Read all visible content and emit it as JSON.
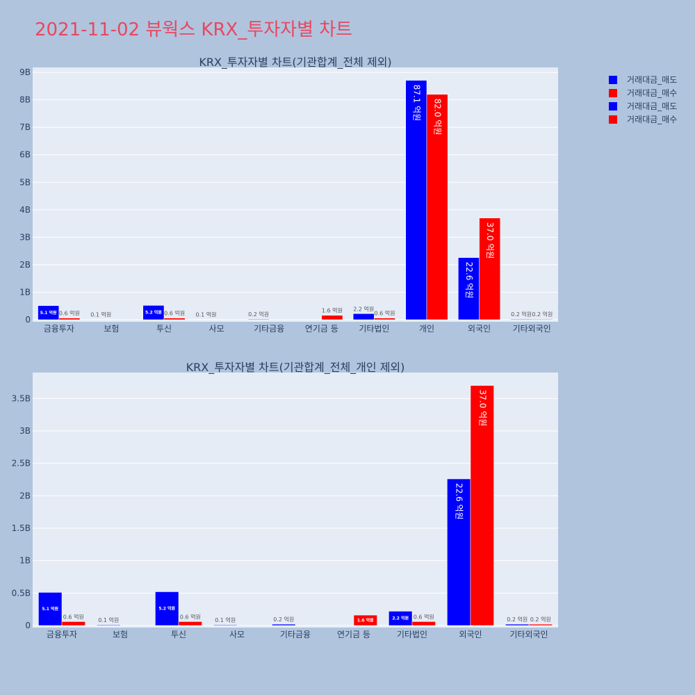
{
  "page": {
    "title": "2021-11-02 뷰웍스 KRX_투자자별 차트"
  },
  "legend": [
    {
      "label": "거래대금_매도",
      "color": "#0000ff"
    },
    {
      "label": "거래대금_매수",
      "color": "#ff0000"
    },
    {
      "label": "거래대금_매도",
      "color": "#0000ff"
    },
    {
      "label": "거래대금_매수",
      "color": "#ff0000"
    }
  ],
  "chart_data": [
    {
      "type": "bar",
      "title": "KRX_투자자별 차트(기관합계_전체 제외)",
      "categories": [
        "금융투자",
        "보험",
        "투신",
        "사모",
        "기타금융",
        "연기금 등",
        "기타법인",
        "개인",
        "외국인",
        "기타외국인"
      ],
      "series": [
        {
          "name": "거래대금_매도",
          "color": "#0000ff",
          "values": [
            510000000,
            10000000,
            520000000,
            10000000,
            20000000,
            0,
            220000000,
            8710000000,
            2260000000,
            20000000
          ],
          "labels": [
            "5.1 억원",
            "0.1 억원",
            "5.2 억원",
            "0.1 억원",
            "0.2 억원",
            "",
            "2.2 억원",
            "87.1 억원",
            "22.6 억원",
            "0.2 억원"
          ]
        },
        {
          "name": "거래대금_매수",
          "color": "#ff0000",
          "values": [
            60000000,
            0,
            60000000,
            0,
            0,
            160000000,
            60000000,
            8200000000,
            3700000000,
            20000000
          ],
          "labels": [
            "0.6 억원",
            "",
            "0.6 억원",
            "",
            "",
            "1.6 억원",
            "0.6 억원",
            "82.0 억원",
            "37.0 억원",
            "0.2 억원"
          ]
        }
      ],
      "yticks": [
        0,
        1000000000,
        2000000000,
        3000000000,
        4000000000,
        5000000000,
        6000000000,
        7000000000,
        8000000000,
        9000000000
      ],
      "ytick_labels": [
        "0",
        "1B",
        "2B",
        "3B",
        "4B",
        "5B",
        "6B",
        "7B",
        "8B",
        "9B"
      ],
      "ylim": [
        0,
        9180000000
      ],
      "grid": true
    },
    {
      "type": "bar",
      "title": "KRX_투자자별 차트(기관합계_전체_개인 제외)",
      "categories": [
        "금융투자",
        "보험",
        "투신",
        "사모",
        "기타금융",
        "연기금 등",
        "기타법인",
        "외국인",
        "기타외국인"
      ],
      "series": [
        {
          "name": "거래대금_매도",
          "color": "#0000ff",
          "values": [
            510000000,
            10000000,
            520000000,
            10000000,
            20000000,
            0,
            220000000,
            2260000000,
            20000000
          ],
          "labels": [
            "5.1 억원",
            "0.1 억원",
            "5.2 억원",
            "0.1 억원",
            "0.2 억원",
            "",
            "2.2 억원",
            "22.6 억원",
            "0.2 억원"
          ]
        },
        {
          "name": "거래대금_매수",
          "color": "#ff0000",
          "values": [
            60000000,
            0,
            60000000,
            0,
            0,
            160000000,
            60000000,
            3700000000,
            20000000
          ],
          "labels": [
            "0.6 억원",
            "",
            "0.6 억원",
            "",
            "",
            "1.6 억원",
            "0.6 억원",
            "37.0 억원",
            "0.2 억원"
          ]
        }
      ],
      "yticks": [
        0,
        500000000,
        1000000000,
        1500000000,
        2000000000,
        2500000000,
        3000000000,
        3500000000
      ],
      "ytick_labels": [
        "0",
        "0.5B",
        "1B",
        "1.5B",
        "2B",
        "2.5B",
        "3B",
        "3.5B"
      ],
      "ylim": [
        0,
        3900000000
      ],
      "grid": true
    }
  ]
}
